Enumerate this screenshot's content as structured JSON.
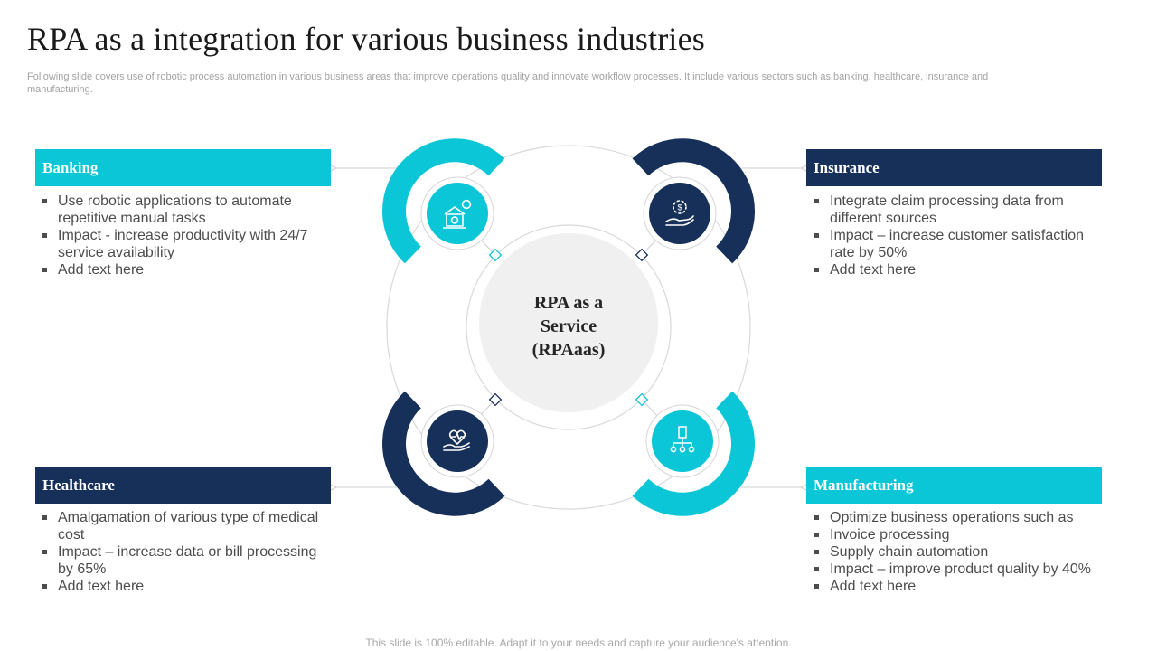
{
  "slide": {
    "title": "RPA as a integration  for various business industries",
    "subtitle": "Following slide covers use of robotic process automation in various business areas that improve operations quality and innovate workflow processes. It include various sectors such as banking, healthcare, insurance and manufacturing.",
    "footer": "This slide is 100% editable. Adapt it to your needs and capture your audience's attention."
  },
  "center": {
    "lines": [
      "RPA as a",
      "Service",
      "(RPAaas)"
    ]
  },
  "sections": {
    "banking": {
      "title": "Banking",
      "color": "#0bc6d6",
      "icon": "bank-icon",
      "bullets": [
        "Use robotic applications to automate repetitive manual tasks",
        "Impact - increase productivity with 24/7 service availability",
        "Add text here"
      ]
    },
    "insurance": {
      "title": "Insurance",
      "color": "#17305a",
      "icon": "money-hand-icon",
      "bullets": [
        "Integrate claim processing data from different sources",
        "Impact – increase customer satisfaction rate by 50%",
        "Add text here"
      ]
    },
    "healthcare": {
      "title": "Healthcare",
      "color": "#17305a",
      "icon": "health-hand-icon",
      "bullets": [
        "Amalgamation of various type of medical cost",
        "Impact – increase data or bill processing by 65%",
        "Add text here"
      ]
    },
    "manufacturing": {
      "title": "Manufacturing",
      "color": "#0bc6d6",
      "icon": "factory-network-icon",
      "bullets": [
        "Optimize business operations such as",
        "Invoice processing",
        "Supply chain automation",
        "Impact – improve product quality by 40%",
        "Add text here"
      ]
    }
  }
}
